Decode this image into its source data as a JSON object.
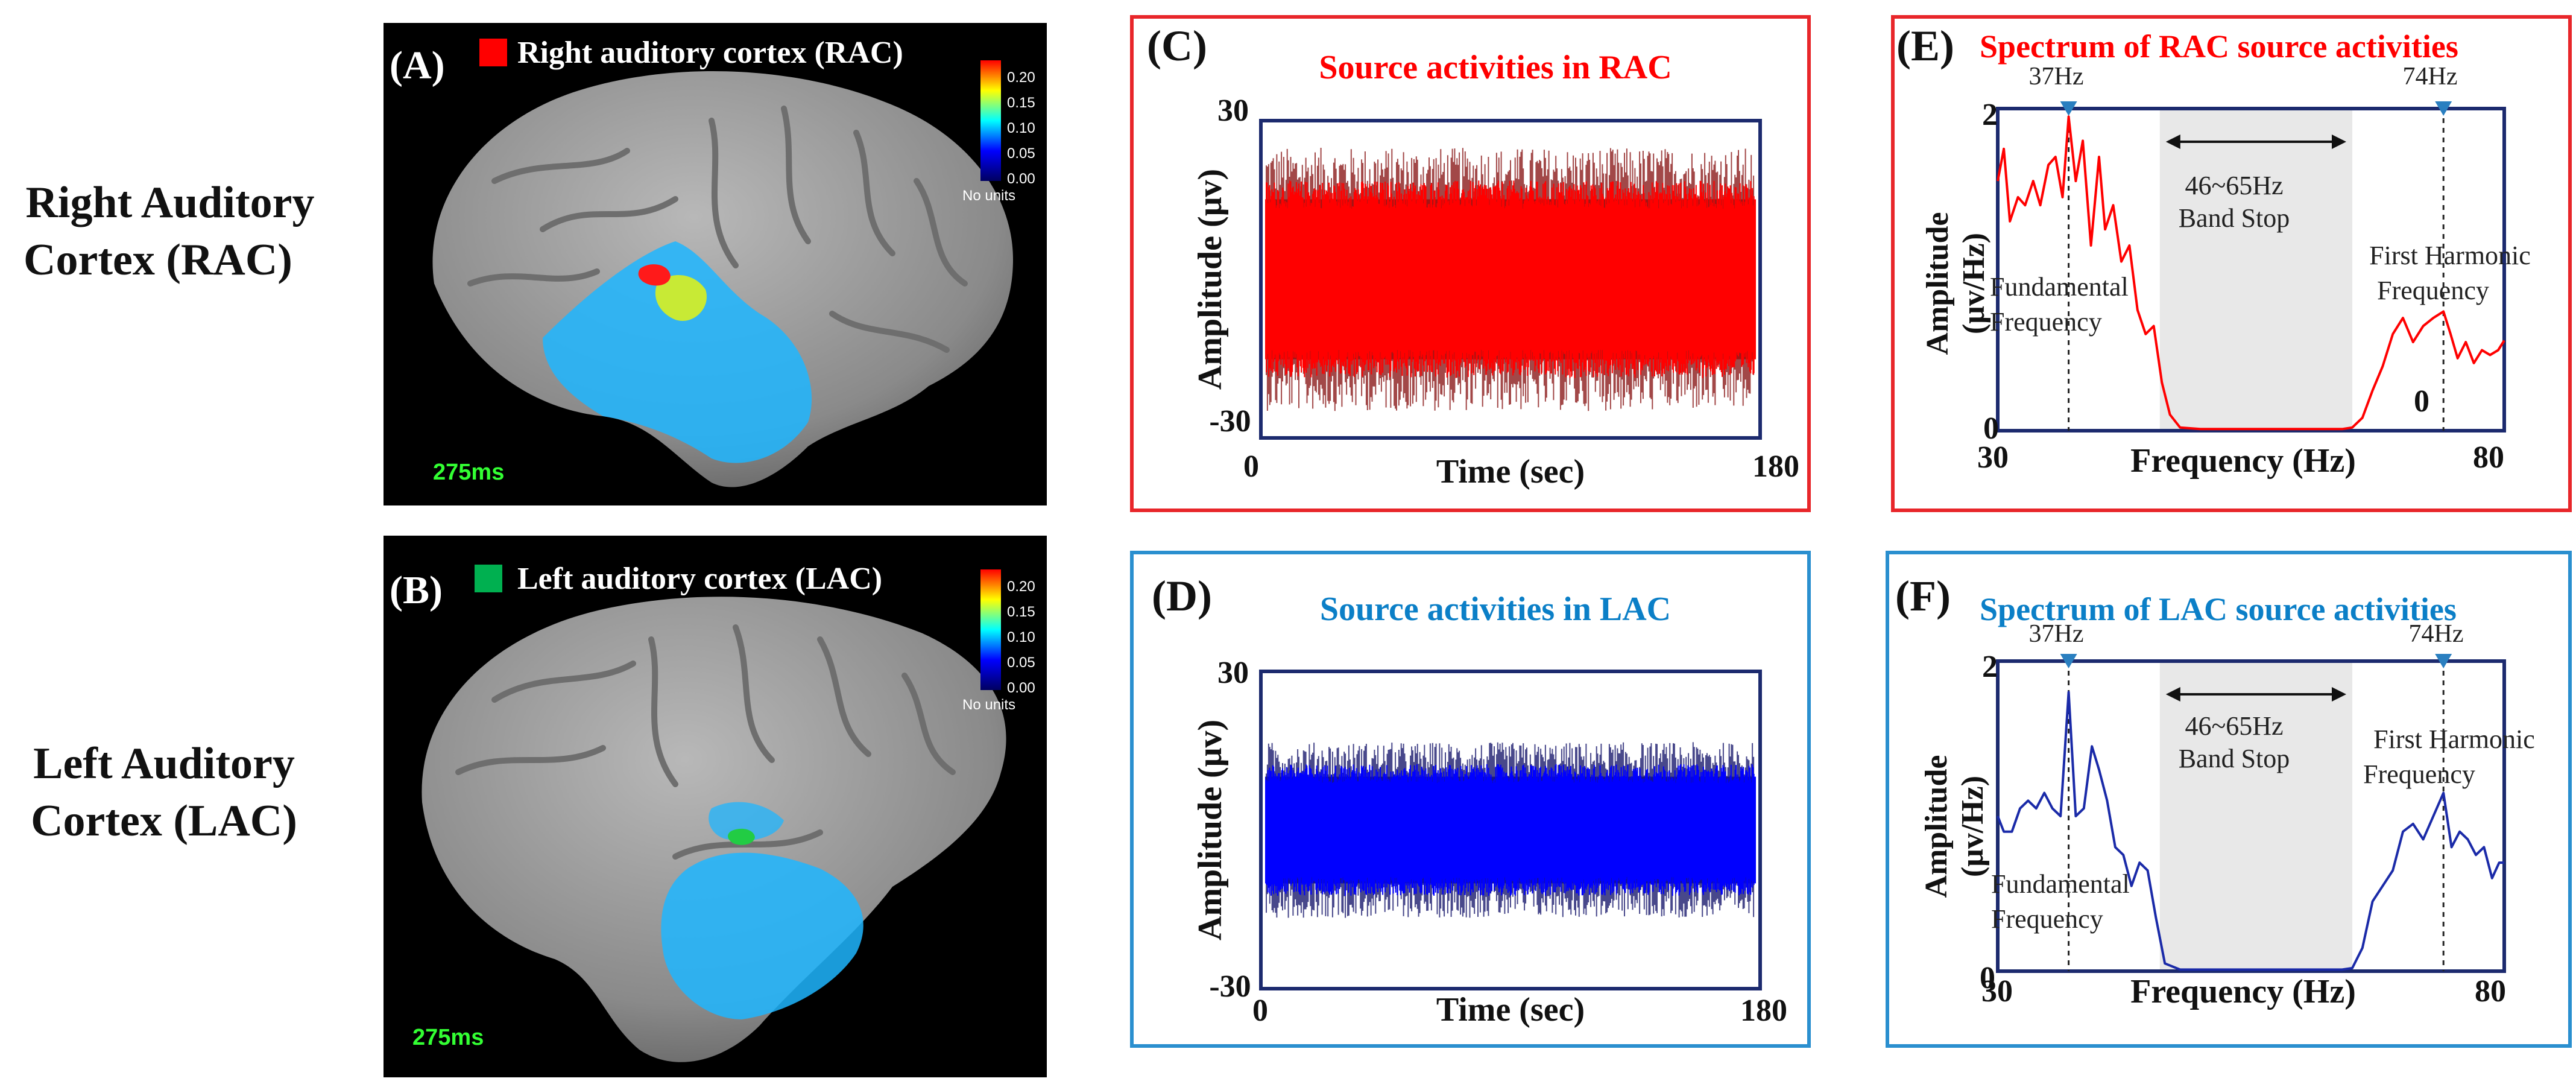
{
  "rows": {
    "rac": {
      "line1": "Right Auditory",
      "line2": "Cortex (RAC)"
    },
    "lac": {
      "line1": "Left Auditory",
      "line2": "Cortex (LAC)"
    }
  },
  "panels": {
    "A": {
      "letter": "(A)",
      "legend": "Right auditory cortex (RAC)",
      "legend_color": "#ff0000",
      "time": "275ms"
    },
    "B": {
      "letter": "(B)",
      "legend": "Left auditory cortex (LAC)",
      "legend_color": "#00b050",
      "time": "275ms"
    },
    "C": {
      "letter": "(C)",
      "title": "Source activities in RAC",
      "title_color": "#ff0000",
      "box_color": "#e8262a",
      "signal_color": "#ff0000"
    },
    "D": {
      "letter": "(D)",
      "title": "Source activities in LAC",
      "title_color": "#0b7fc7",
      "box_color": "#2a8fcf",
      "signal_color": "#0000ff"
    },
    "E": {
      "letter": "(E)",
      "title": "Spectrum of RAC source activities",
      "title_color": "#ff0000",
      "box_color": "#e8262a",
      "line_color": "#ff0000",
      "zero_marker": "0"
    },
    "F": {
      "letter": "(F)",
      "title": "Spectrum of LAC source activities",
      "title_color": "#0b7fc7",
      "box_color": "#2a8fcf",
      "line_color": "#1a2aa8"
    }
  },
  "colorbar": {
    "ticks": [
      "0.20",
      "0.15",
      "0.10",
      "0.05",
      "0.00"
    ],
    "units": "No units",
    "colors": [
      "#ff0000",
      "#ffff00",
      "#00ffff",
      "#0000ff",
      "#000080"
    ]
  },
  "time_axis": {
    "xlabel": "Time (sec)",
    "ylabel": "Amplitude (μv)",
    "x_ticks": [
      "0",
      "180"
    ],
    "y_ticks": [
      "30",
      "-30"
    ]
  },
  "freq_axis": {
    "xlabel": "Frequency (Hz)",
    "ylabel_line1": "Amplitude",
    "ylabel_line2": "(μv/Hz)",
    "x_ticks": [
      "30",
      "80"
    ],
    "y_ticks": [
      "2",
      "0"
    ]
  },
  "annotations": {
    "fundamental_hz": "37Hz",
    "harmonic_hz": "74Hz",
    "band_range": "46~65Hz",
    "band_label": "Band Stop",
    "fundamental_line1": "Fundamental",
    "fundamental_line2": "Frequency",
    "harmonic_line1": "First Harmonic",
    "harmonic_line2": "Frequency"
  },
  "chart_data": [
    {
      "type": "line",
      "panel": "C",
      "title": "Source activities in RAC",
      "xlabel": "Time (sec)",
      "ylabel": "Amplitude (μv)",
      "xlim": [
        0,
        180
      ],
      "ylim": [
        -30,
        30
      ],
      "series": [
        {
          "values_description_envelope": [
            -18,
            18
          ],
          "color": "#ff0000"
        }
      ]
    },
    {
      "type": "line",
      "panel": "D",
      "title": "Source activities in LAC",
      "xlabel": "Time (sec)",
      "ylabel": "Amplitude (μv)",
      "xlim": [
        0,
        180
      ],
      "ylim": [
        -30,
        30
      ],
      "series": [
        {
          "values_description_envelope": [
            -12,
            12
          ],
          "color": "#0000ff"
        }
      ]
    },
    {
      "type": "line",
      "panel": "E",
      "title": "Spectrum of RAC source activities",
      "xlabel": "Frequency (Hz)",
      "ylabel": "Amplitude (μv/Hz)",
      "xlim": [
        30,
        80
      ],
      "ylim": [
        0,
        2
      ],
      "shaded_band": [
        46,
        65
      ],
      "markers": [
        37,
        74
      ],
      "x": [
        30,
        30.6,
        31.2,
        32,
        32.7,
        33.5,
        34.2,
        35,
        35.7,
        36.4,
        37,
        37.7,
        38.4,
        39.2,
        40,
        40.6,
        41.4,
        42.2,
        43,
        43.8,
        44.6,
        45.4,
        46.2,
        47,
        48,
        50,
        52,
        54,
        56,
        58,
        60,
        62,
        64,
        65,
        66,
        67,
        68,
        69,
        70,
        71,
        72,
        73,
        74,
        74.7,
        75.4,
        76.2,
        77,
        77.8,
        78.6,
        79.4,
        80
      ],
      "values": [
        1.55,
        1.75,
        1.3,
        1.45,
        1.4,
        1.55,
        1.4,
        1.65,
        1.7,
        1.45,
        1.95,
        1.55,
        1.8,
        1.15,
        1.7,
        1.25,
        1.4,
        1.05,
        1.15,
        0.75,
        0.6,
        0.65,
        0.3,
        0.1,
        0.02,
        0.01,
        0.01,
        0.01,
        0.01,
        0.01,
        0.01,
        0.01,
        0.01,
        0.02,
        0.08,
        0.25,
        0.4,
        0.6,
        0.7,
        0.55,
        0.65,
        0.7,
        0.74,
        0.6,
        0.45,
        0.55,
        0.42,
        0.5,
        0.47,
        0.5,
        0.56
      ]
    },
    {
      "type": "line",
      "panel": "F",
      "title": "Spectrum of LAC source activities",
      "xlabel": "Frequency (Hz)",
      "ylabel": "Amplitude (μv/Hz)",
      "xlim": [
        30,
        80
      ],
      "ylim": [
        0,
        2
      ],
      "shaded_band": [
        46,
        65
      ],
      "markers": [
        37,
        74
      ],
      "x": [
        30,
        30.6,
        31.4,
        32.2,
        33,
        33.8,
        34.6,
        35.4,
        36.2,
        37,
        37.7,
        38.5,
        39.3,
        40,
        40.8,
        41.6,
        42.4,
        43.2,
        44,
        44.8,
        45.6,
        46.5,
        48,
        50,
        52,
        54,
        56,
        58,
        60,
        62,
        64,
        65,
        66,
        67,
        68,
        69,
        70,
        71,
        72,
        73,
        74,
        74.8,
        75.6,
        76.4,
        77.2,
        78,
        78.8,
        79.5,
        80
      ],
      "values": [
        1.0,
        0.9,
        0.9,
        1.05,
        1.1,
        1.05,
        1.15,
        1.05,
        1.0,
        1.8,
        1.0,
        1.05,
        1.45,
        1.3,
        1.1,
        0.8,
        0.75,
        0.55,
        0.7,
        0.65,
        0.35,
        0.05,
        0.01,
        0.01,
        0.01,
        0.01,
        0.01,
        0.01,
        0.01,
        0.01,
        0.01,
        0.02,
        0.15,
        0.45,
        0.55,
        0.65,
        0.9,
        0.95,
        0.85,
        1.0,
        1.15,
        0.8,
        0.9,
        0.85,
        0.75,
        0.8,
        0.6,
        0.7,
        0.7
      ]
    }
  ]
}
